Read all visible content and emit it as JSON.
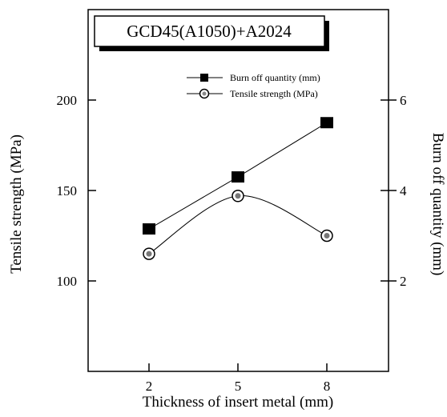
{
  "chart_data": {
    "type": "line",
    "title": "GCD45(A1050)+A2024",
    "xlabel": "Thickness of insert metal (mm)",
    "ylabel_left": "Tensile strength (MPa)",
    "ylabel_right": "Burn off quantity (mm)",
    "categories": [
      "2",
      "5",
      "8"
    ],
    "x": [
      2,
      5,
      8
    ],
    "ylim_left": [
      50,
      250
    ],
    "ylim_right": [
      0,
      8
    ],
    "yticks_left": [
      100,
      150,
      200
    ],
    "yticks_right": [
      2,
      4,
      6
    ],
    "grid": false,
    "legend_position": "top-right",
    "series": [
      {
        "name": "Burn off quantity (mm)",
        "axis": "right",
        "marker": "square",
        "line": "straight",
        "values": [
          3.15,
          4.3,
          5.5
        ]
      },
      {
        "name": "Tensile strength (MPa)",
        "axis": "left",
        "marker": "circle",
        "line": "smooth",
        "values": [
          115,
          147,
          125
        ]
      }
    ]
  }
}
